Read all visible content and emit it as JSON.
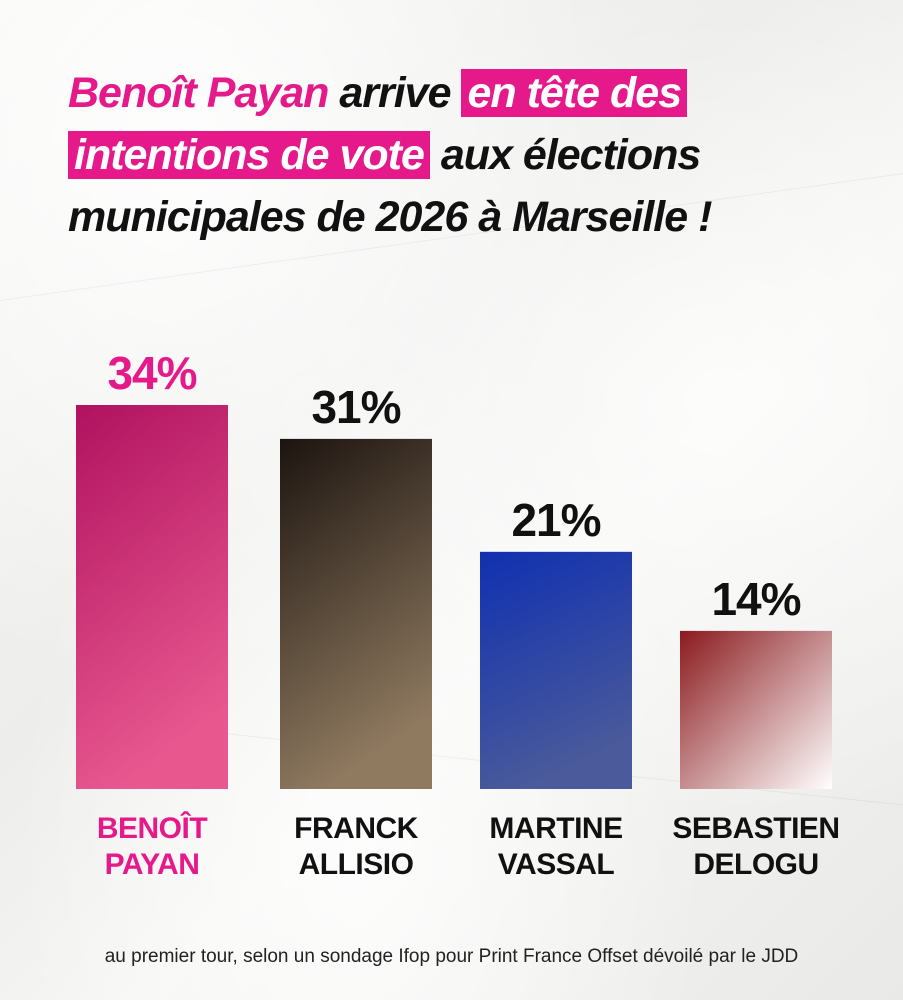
{
  "headline": {
    "line1_pink": "Benoît Payan",
    "line1_text": " arrive ",
    "line1_box": "en tête des",
    "line2_box": "intentions de vote",
    "line2_text": " aux élections",
    "line3_text": "municipales de 2026 à Marseille !"
  },
  "footnote": "au premier tour, selon un sondage Ifop pour Print France Offset dévoilé par le JDD",
  "colors": {
    "accent": "#e5198a",
    "text": "#111111"
  },
  "chart_data": {
    "type": "bar",
    "categories": [
      "BENOÎT PAYAN",
      "FRANCK ALLISIO",
      "MARTINE VASSAL",
      "SEBASTIEN DELOGU"
    ],
    "category_lines": [
      [
        "BENOÎT",
        "PAYAN"
      ],
      [
        "FRANCK",
        "ALLISIO"
      ],
      [
        "MARTINE",
        "VASSAL"
      ],
      [
        "SEBASTIEN",
        "DELOGU"
      ]
    ],
    "values": [
      34,
      31,
      21,
      14
    ],
    "value_labels": [
      "34%",
      "31%",
      "21%",
      "14%"
    ],
    "bar_colors": [
      [
        "#b0125f",
        "#e8588f"
      ],
      [
        "#1c1410",
        "#8f7a60"
      ],
      [
        "#1030b0",
        "#4a5a9a"
      ],
      [
        "#8a1a1e",
        "#ffffff"
      ]
    ],
    "label_colors": [
      "#e5198a",
      "#111111",
      "#111111",
      "#111111"
    ],
    "ylim": [
      0,
      34
    ],
    "grid": false,
    "legend": "none"
  }
}
